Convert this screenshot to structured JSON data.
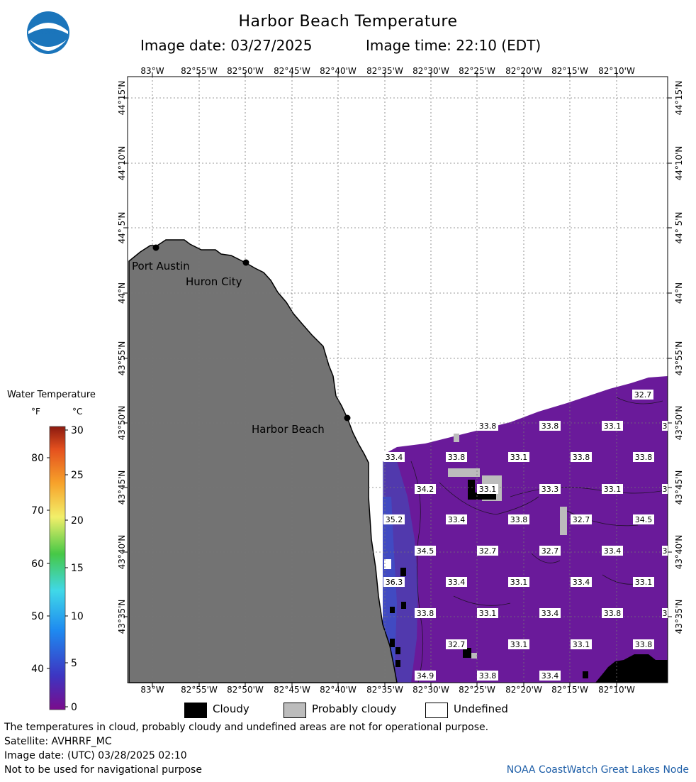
{
  "header": {
    "title": "Harbor Beach Temperature",
    "image_date": "Image date: 03/27/2025",
    "image_time": "Image time: 22:10 (EDT)",
    "logo_text": "NOAA"
  },
  "map": {
    "lon_labels": [
      "83°W",
      "82°55'W",
      "82°50'W",
      "82°45'W",
      "82°40'W",
      "82°35'W",
      "82°30'W",
      "82°25'W",
      "82°20'W",
      "82°15'W",
      "82°10'W"
    ],
    "lat_labels": [
      "44°15'N",
      "44°10'N",
      "44° 5'N",
      "44°N",
      "43°55'N",
      "43°50'N",
      "43°45'N",
      "43°40'N",
      "43°35'N"
    ],
    "cities": [
      {
        "name": "Port Austin"
      },
      {
        "name": "Huron City"
      },
      {
        "name": "Harbor Beach"
      }
    ],
    "temperature_labels": [
      "32.7",
      "33.8",
      "33.8",
      "33.1",
      "3",
      "33.4",
      "33.8",
      "33.1",
      "33.8",
      "33.8",
      "34.2",
      "33.1",
      "33.3",
      "33.1",
      "3",
      "35.2",
      "33.4",
      "33.8",
      "32.7",
      "34.5",
      "34.5",
      "32.7",
      "32.7",
      "33.4",
      "3",
      "36.3",
      "33.4",
      "33.1",
      "33.4",
      "33.1",
      "33.8",
      "33.1",
      "33.4",
      "33.8",
      "3",
      "32.7",
      "33.1",
      "33.1",
      "33.8",
      "34.9",
      "33.8",
      "33.4"
    ],
    "colors": {
      "land": "#737373",
      "water": "#6a1a9a",
      "cloudy": "#000000",
      "probably_cloudy": "#bcbcbc",
      "undefined": "#ffffff"
    }
  },
  "legend": {
    "title": "Water Temperature",
    "unit_f": "°F",
    "unit_c": "°C",
    "f_ticks": [
      "80",
      "70",
      "60",
      "50",
      "40"
    ],
    "c_ticks": [
      "30",
      "25",
      "20",
      "15",
      "10",
      "5",
      "0"
    ]
  },
  "key": {
    "cloudy": "Cloudy",
    "probably_cloudy": "Probably cloudy",
    "undefined": "Undefined"
  },
  "footer": {
    "note": "The temperatures in cloud, probably cloudy and undefined areas are not for operational purpose.",
    "satellite": "Satellite: AVHRRF_MC",
    "utc_date": "Image date: (UTC) 03/28/2025  02:10",
    "disclaimer": "Not to be used for navigational purpose",
    "credit": "NOAA CoastWatch Great Lakes Node"
  }
}
